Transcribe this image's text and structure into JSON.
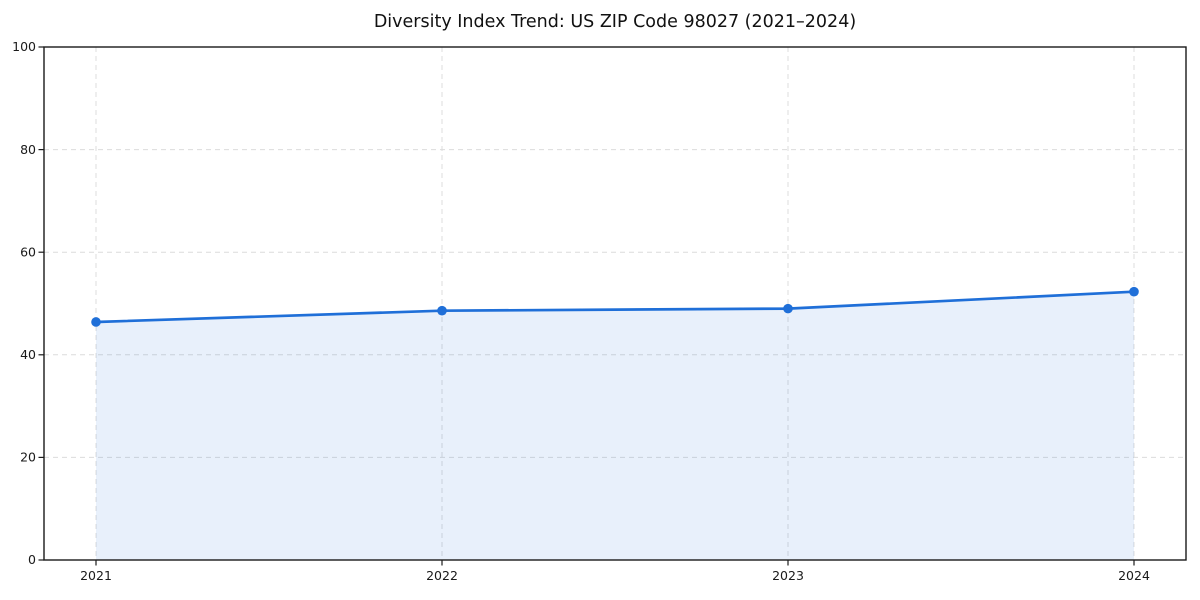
{
  "chart_data": {
    "type": "line",
    "title": "Diversity Index Trend: US ZIP Code 98027 (2021–2024)",
    "x": [
      2021,
      2022,
      2023,
      2024
    ],
    "xtick_labels": [
      "2021",
      "2022",
      "2023",
      "2024"
    ],
    "series": [
      {
        "name": "Diversity Index",
        "values": [
          46.4,
          48.6,
          49.0,
          52.3
        ]
      }
    ],
    "xlabel": "",
    "ylabel": "",
    "ylim": [
      0,
      100
    ],
    "yticks": [
      0,
      20,
      40,
      60,
      80,
      100
    ],
    "grid": "dashed, both axes, at every tick",
    "legend": "none",
    "area_fill_to_zero": true,
    "marker": "circle",
    "colors": {
      "line": "#1f6fd8",
      "marker": "#1f6fd8",
      "area": "rgba(31,111,216,0.10)",
      "grid": "#dcdcdc",
      "spine": "#1a1a1a",
      "text": "#1a1a1a",
      "background": "#ffffff"
    }
  }
}
